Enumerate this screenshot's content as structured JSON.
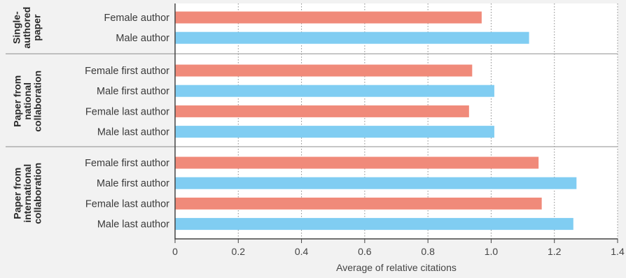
{
  "chart_data": {
    "type": "bar",
    "orientation": "horizontal",
    "xlabel": "Average of relative citations",
    "xlim": [
      0,
      1.4
    ],
    "xticks": [
      "0",
      "0.2",
      "0.4",
      "0.6",
      "0.8",
      "1.0",
      "1.2",
      "1.4"
    ],
    "grid": "vertical dotted",
    "colors": {
      "female": "#f08a7a",
      "male": "#80cdf2"
    },
    "groups": [
      {
        "label": "Single-authored paper",
        "label_lines": [
          "Single-",
          "authored",
          "paper"
        ],
        "bars": [
          {
            "label": "Female author",
            "value": 0.97,
            "gender": "female"
          },
          {
            "label": "Male author",
            "value": 1.12,
            "gender": "male"
          }
        ]
      },
      {
        "label": "Paper from national collaboration",
        "label_lines": [
          "Paper from",
          "national",
          "collaboration"
        ],
        "bars": [
          {
            "label": "Female first author",
            "value": 0.94,
            "gender": "female"
          },
          {
            "label": "Male first author",
            "value": 1.01,
            "gender": "male"
          },
          {
            "label": "Female last author",
            "value": 0.93,
            "gender": "female"
          },
          {
            "label": "Male last author",
            "value": 1.01,
            "gender": "male"
          }
        ]
      },
      {
        "label": "Paper from international collaboration",
        "label_lines": [
          "Paper from",
          "international",
          "collaboration"
        ],
        "bars": [
          {
            "label": "Female first author",
            "value": 1.15,
            "gender": "female"
          },
          {
            "label": "Male first author",
            "value": 1.27,
            "gender": "male"
          },
          {
            "label": "Female last author",
            "value": 1.16,
            "gender": "female"
          },
          {
            "label": "Male last author",
            "value": 1.26,
            "gender": "male"
          }
        ]
      }
    ]
  }
}
